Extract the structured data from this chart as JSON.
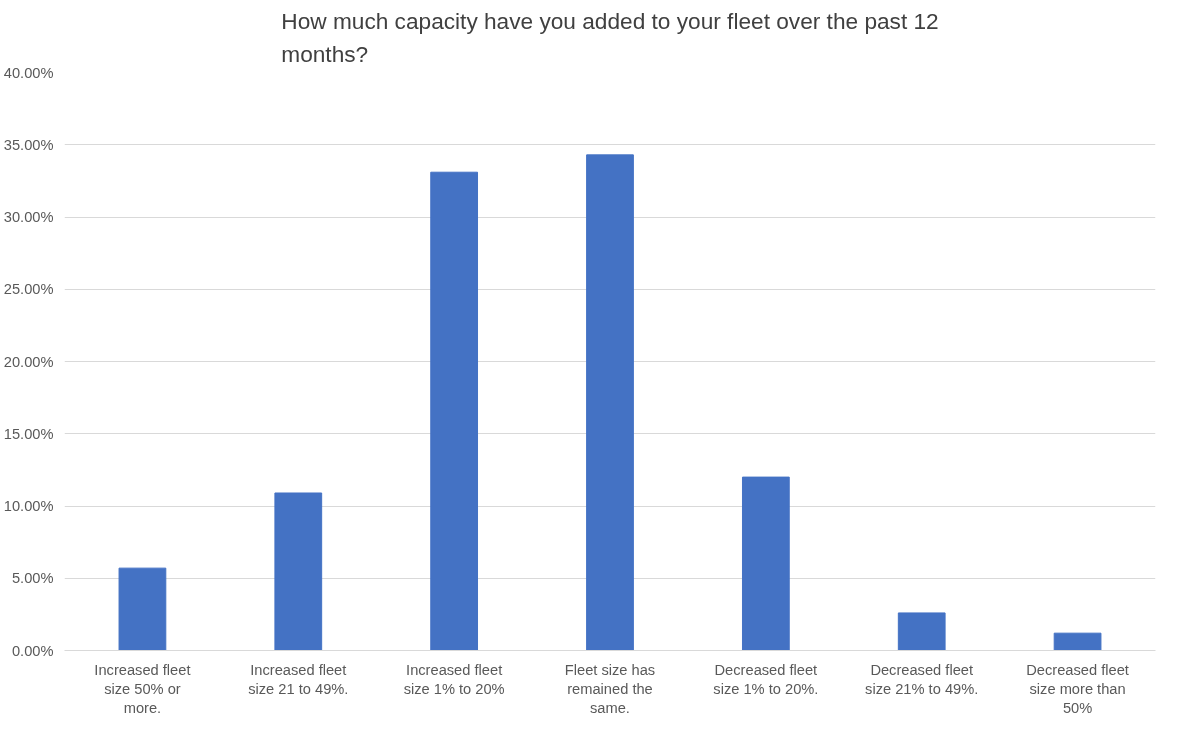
{
  "chart_data": {
    "type": "bar",
    "title": "How much capacity have you added to your fleet over the past 12\nmonths?",
    "categories": [
      "Increased fleet\nsize 50% or\nmore.",
      "Increased fleet\nsize 21 to 49%.",
      "Increased fleet\nsize 1% to 20%",
      "Fleet size has\nremained the\nsame.",
      "Decreased fleet\nsize 1% to 20%.",
      "Decreased fleet\nsize 21% to 49%.",
      "Decreased fleet\nsize more than\n50%"
    ],
    "values": [
      5.7,
      10.9,
      33.1,
      34.3,
      12.0,
      2.6,
      1.2
    ],
    "color": "#4472c4",
    "ylim": [
      0,
      40
    ],
    "yticks": [
      {
        "value": 0,
        "label": "0.00%"
      },
      {
        "value": 5,
        "label": "5.00%"
      },
      {
        "value": 10,
        "label": "10.00%"
      },
      {
        "value": 15,
        "label": "15.00%"
      },
      {
        "value": 20,
        "label": "20.00%"
      },
      {
        "value": 25,
        "label": "25.00%"
      },
      {
        "value": 30,
        "label": "30.00%"
      },
      {
        "value": 35,
        "label": "35.00%"
      },
      {
        "value": 40,
        "label": "40.00%"
      }
    ],
    "grid": "y"
  }
}
